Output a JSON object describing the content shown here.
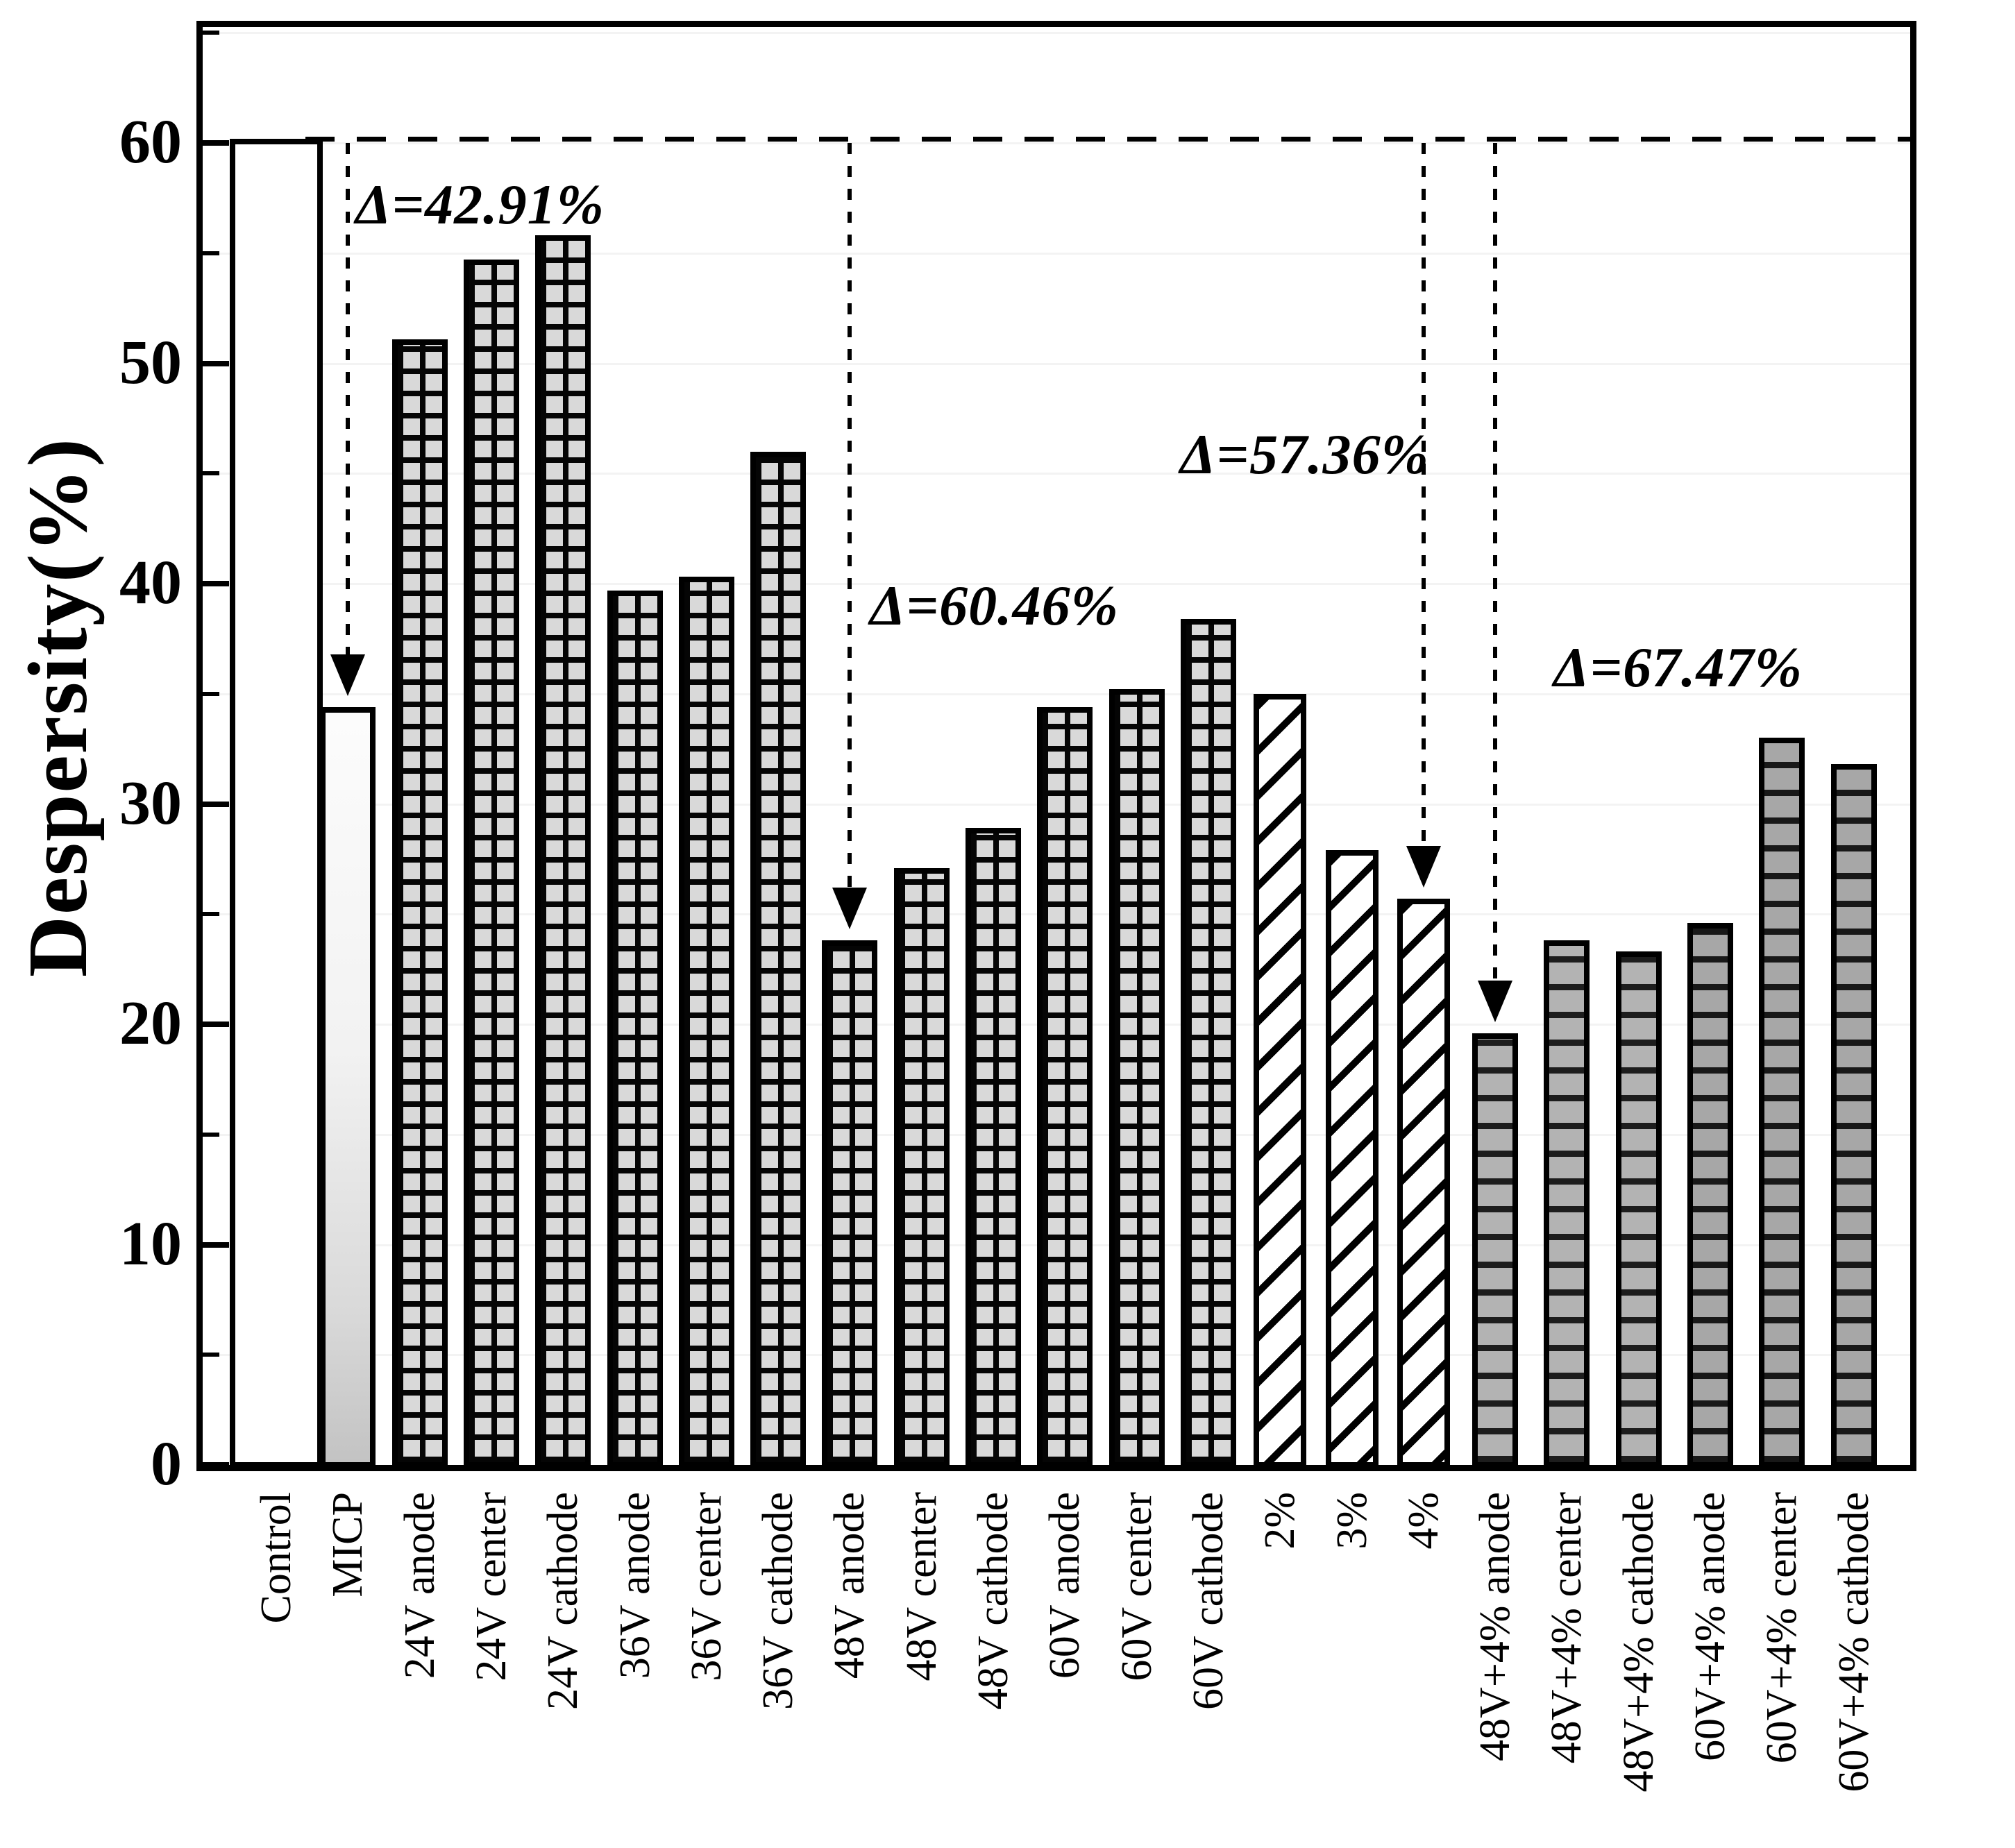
{
  "chart_data": {
    "type": "bar",
    "title": "",
    "xlabel": "",
    "ylabel": "Despersity(%)",
    "ylim": [
      0,
      65.5
    ],
    "yticks_major": [
      0,
      10,
      20,
      30,
      40,
      50,
      60
    ],
    "yticks_minor": [
      5,
      15,
      25,
      35,
      45,
      55,
      65
    ],
    "grid": "faint horizontal lines every 5 units",
    "legend_position": "none",
    "categories": [
      "Control",
      "MICP",
      "24V anode",
      "24V center",
      "24V cathode",
      "36V anode",
      "36V center",
      "36V cathode",
      "48V anode",
      "48V center",
      "48V cathode",
      "60V anode",
      "60V center",
      "60V cathode",
      "2%",
      "3%",
      "4%",
      "48V+4% anode",
      "48V+4% center",
      "48V+4% cathode",
      "60V+4% anode",
      "60V+4% center",
      "60V+4% cathode"
    ],
    "values": [
      60.2,
      34.4,
      51.1,
      54.7,
      55.8,
      39.7,
      40.3,
      46.0,
      23.8,
      27.1,
      28.9,
      34.4,
      35.2,
      38.4,
      35.0,
      27.9,
      25.7,
      19.6,
      23.8,
      23.3,
      24.6,
      33.0,
      31.8
    ],
    "bar_styles": [
      "plain",
      "gradient",
      "grid",
      "grid",
      "grid",
      "grid",
      "grid",
      "grid",
      "grid",
      "grid",
      "grid",
      "grid",
      "grid",
      "grid",
      "hatch",
      "hatch",
      "hatch",
      "rows",
      "rows",
      "rows",
      "rows-dark",
      "rows-dark",
      "rows-dark"
    ],
    "reference_line": {
      "y": 60.2,
      "style": "dashed",
      "starts_after": "Control"
    },
    "annotations": [
      {
        "label": "Δ=42.91%",
        "points_to": "MICP",
        "points_to_value": 34.4
      },
      {
        "label": "Δ=60.46%",
        "points_to": "48V anode",
        "points_to_value": 23.8
      },
      {
        "label": "Δ=57.36%",
        "points_to": "4%",
        "points_to_value": 25.7
      },
      {
        "label": "Δ=67.47%",
        "points_to": "48V+4% anode",
        "points_to_value": 19.6
      }
    ],
    "colors": {
      "axis": "#000000",
      "bar_outline": "#000000",
      "grid_cell_fill": "#d9d9d9",
      "rows_fill": "#b3b3b3",
      "rows_dark_fill": "#a7a7a7",
      "faint_gridline": "#f3f3f3",
      "background": "#ffffff"
    }
  }
}
